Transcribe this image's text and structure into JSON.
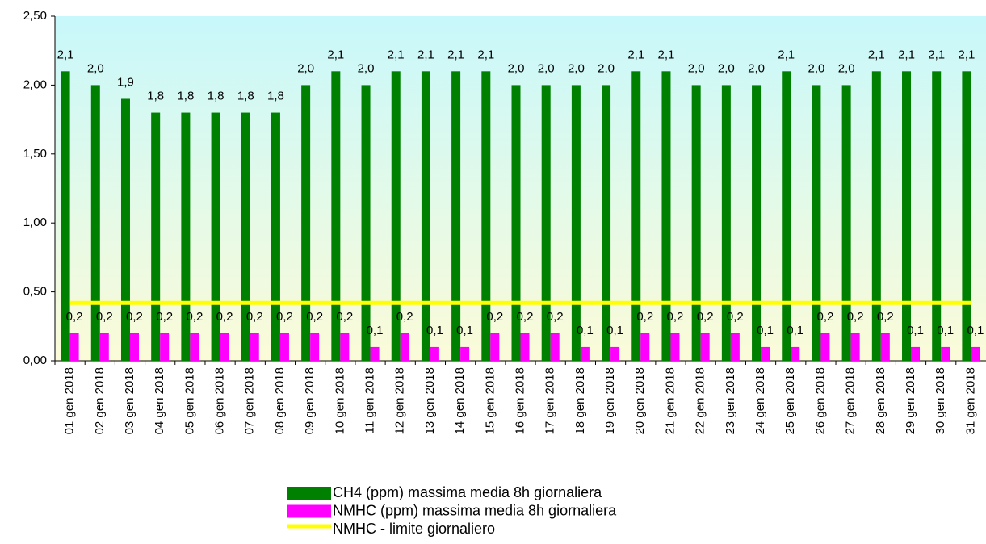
{
  "chart_data": {
    "type": "bar",
    "categories": [
      "01 gen 2018",
      "02 gen 2018",
      "03 gen 2018",
      "04 gen 2018",
      "05 gen 2018",
      "06 gen 2018",
      "07 gen 2018",
      "08 gen 2018",
      "09 gen 2018",
      "10 gen 2018",
      "11 gen 2018",
      "12 gen 2018",
      "13 gen 2018",
      "14 gen 2018",
      "15 gen 2018",
      "16 gen 2018",
      "17 gen 2018",
      "18 gen 2018",
      "19 gen 2018",
      "20 gen 2018",
      "21 gen 2018",
      "22 gen 2018",
      "23 gen 2018",
      "24 gen 2018",
      "25 gen 2018",
      "26 gen 2018",
      "27 gen 2018",
      "28 gen 2018",
      "29 gen 2018",
      "30 gen 2018",
      "31 gen 2018"
    ],
    "series": [
      {
        "name": "CH4 (ppm) massima media 8h giornaliera",
        "type": "bar",
        "color": "#008000",
        "values": [
          2.1,
          2.0,
          1.9,
          1.8,
          1.8,
          1.8,
          1.8,
          1.8,
          2.0,
          2.1,
          2.0,
          2.1,
          2.1,
          2.1,
          2.1,
          2.0,
          2.0,
          2.0,
          2.0,
          2.1,
          2.1,
          2.0,
          2.0,
          2.0,
          2.1,
          2.0,
          2.0,
          2.1,
          2.1,
          2.1,
          2.1
        ],
        "value_labels": [
          "2,1",
          "2,0",
          "1,9",
          "1,8",
          "1,8",
          "1,8",
          "1,8",
          "1,8",
          "2,0",
          "2,1",
          "2,0",
          "2,1",
          "2,1",
          "2,1",
          "2,1",
          "2,0",
          "2,0",
          "2,0",
          "2,0",
          "2,1",
          "2,1",
          "2,0",
          "2,0",
          "2,0",
          "2,1",
          "2,0",
          "2,0",
          "2,1",
          "2,1",
          "2,1",
          "2,1"
        ]
      },
      {
        "name": "NMHC (ppm) massima media 8h giornaliera",
        "type": "bar",
        "color": "#ff00ff",
        "values": [
          0.2,
          0.2,
          0.2,
          0.2,
          0.2,
          0.2,
          0.2,
          0.2,
          0.2,
          0.2,
          0.1,
          0.2,
          0.1,
          0.1,
          0.2,
          0.2,
          0.2,
          0.1,
          0.1,
          0.2,
          0.2,
          0.2,
          0.2,
          0.1,
          0.1,
          0.2,
          0.2,
          0.2,
          0.1,
          0.1,
          0.1
        ],
        "value_labels": [
          "0,2",
          "0,2",
          "0,2",
          "0,2",
          "0,2",
          "0,2",
          "0,2",
          "0,2",
          "0,2",
          "0,2",
          "0,1",
          "0,2",
          "0,1",
          "0,1",
          "0,2",
          "0,2",
          "0,2",
          "0,1",
          "0,1",
          "0,2",
          "0,2",
          "0,2",
          "0,2",
          "0,1",
          "0,1",
          "0,2",
          "0,2",
          "0,2",
          "0,1",
          "0,1",
          "0,1"
        ]
      },
      {
        "name": "NMHC - limite giornaliero",
        "type": "line",
        "color": "#ffff00",
        "values": [
          0.42,
          0.42,
          0.42,
          0.42,
          0.42,
          0.42,
          0.42,
          0.42,
          0.42,
          0.42,
          0.42,
          0.42,
          0.42,
          0.42,
          0.42,
          0.42,
          0.42,
          0.42,
          0.42,
          0.42,
          0.42,
          0.42,
          0.42,
          0.42,
          0.42,
          0.42,
          0.42,
          0.42,
          0.42,
          0.42,
          0.42
        ]
      }
    ],
    "ylim": [
      0,
      2.5
    ],
    "yticks": [
      {
        "value": 0,
        "label": "0,00"
      },
      {
        "value": 0.5,
        "label": "0,50"
      },
      {
        "value": 1,
        "label": "1,00"
      },
      {
        "value": 1.5,
        "label": "1,50"
      },
      {
        "value": 2,
        "label": "2,00"
      },
      {
        "value": 2.5,
        "label": "2,50"
      }
    ],
    "grid": false
  }
}
